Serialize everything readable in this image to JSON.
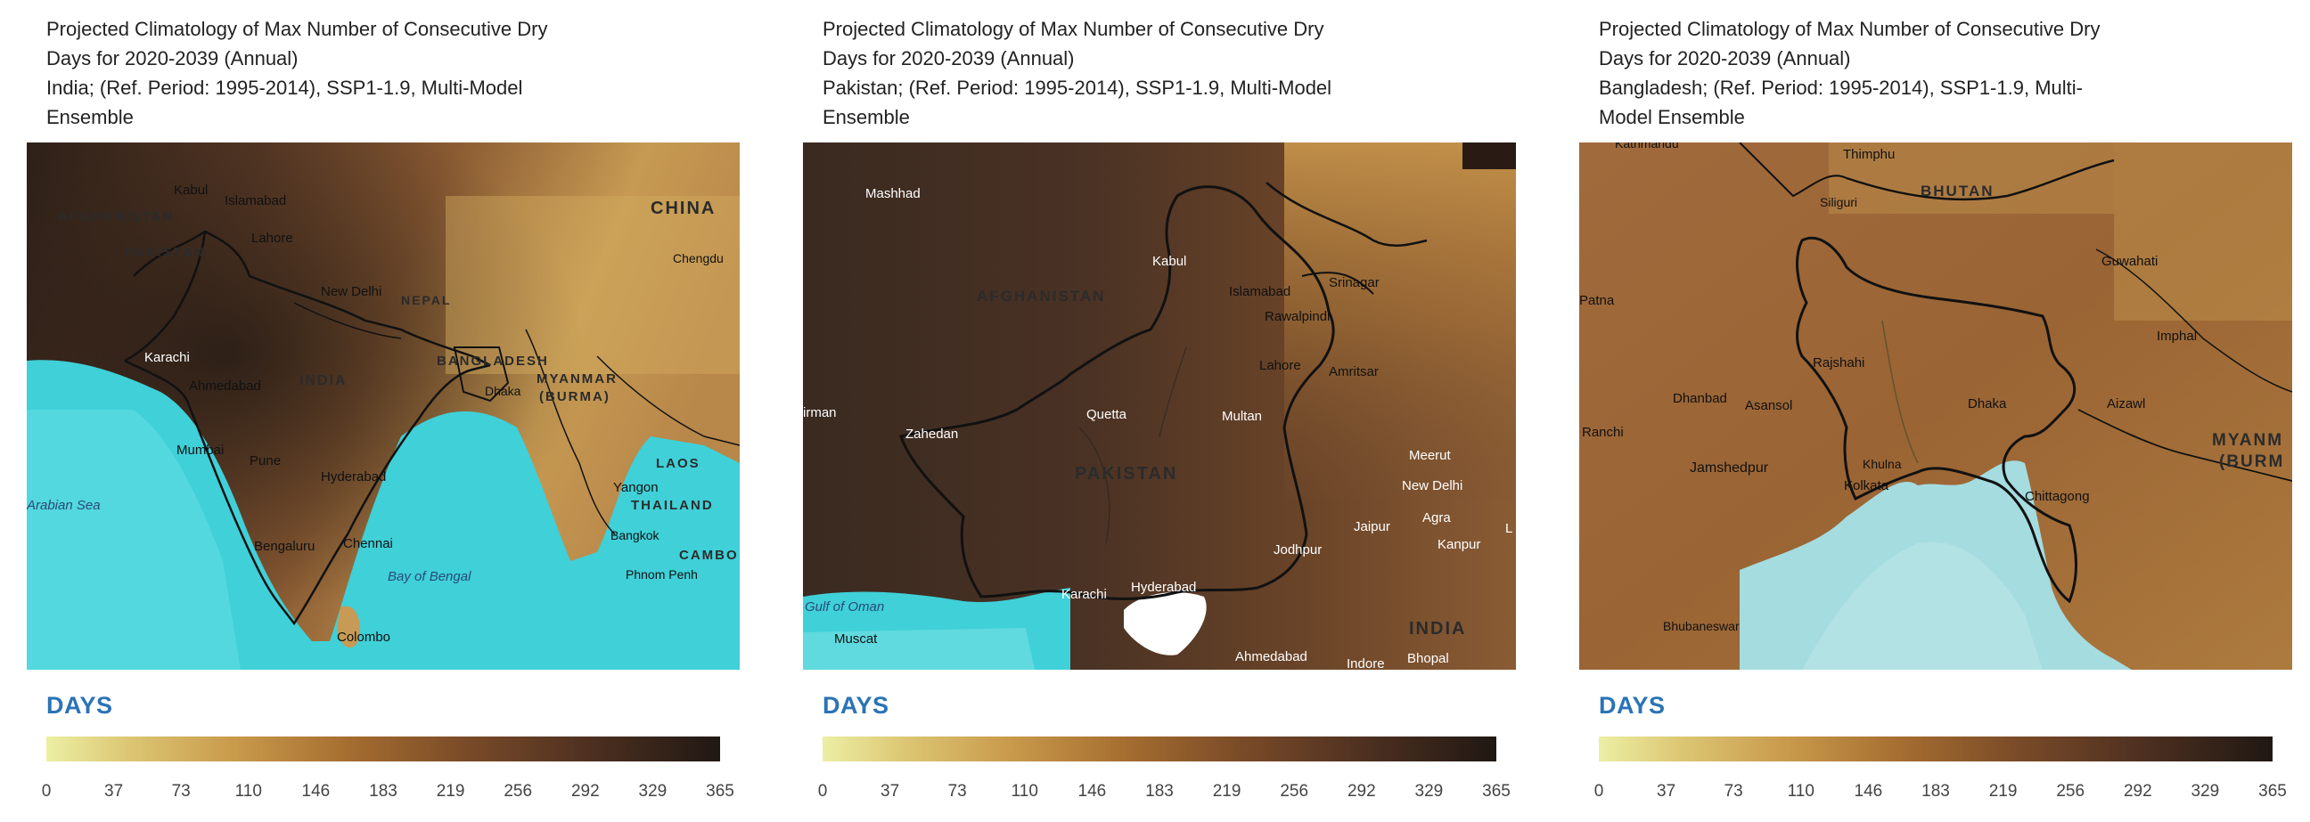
{
  "legend": {
    "title": "DAYS",
    "ticks": [
      "0",
      "37",
      "73",
      "110",
      "146",
      "183",
      "219",
      "256",
      "292",
      "329",
      "365"
    ]
  },
  "colors": {
    "ramp": [
      "#ecefa4",
      "#dcc774",
      "#c89a4a",
      "#a56d30",
      "#7a4b28",
      "#4f3121",
      "#201813"
    ],
    "sea": "#3fd0d8",
    "legend_title": "#2a73b5"
  },
  "panels": [
    {
      "title_lines": [
        "Projected Climatology of Max Number of Consecutive Dry",
        "Days for 2020-2039 (Annual)",
        "India; (Ref. Period: 1995-2014), SSP1-1.9, Multi-Model",
        "Ensemble"
      ],
      "map_labels": {
        "kabul": "Kabul",
        "islamabad": "Islamabad",
        "afghanistan": "AFGHANISTAN",
        "lahore": "Lahore",
        "pakistan": "PAKISTAN",
        "new_delhi": "New Delhi",
        "nepal": "NEPAL",
        "china": "CHINA",
        "chengdu": "Chengdu",
        "karachi": "Karachi",
        "ahmedabad": "Ahmedabad",
        "india": "INDIA",
        "bangladesh": "BANGLADESH",
        "dhaka": "Dhaka",
        "myanmar": "MYANMAR",
        "burma": "(BURMA)",
        "mumbai": "Mumbai",
        "pune": "Pune",
        "hyderabad": "Hyderabad",
        "laos": "LAOS",
        "arabian_sea": "Arabian Sea",
        "yangon": "Yangon",
        "thailand": "THAILAND",
        "bengaluru": "Bengaluru",
        "chennai": "Chennai",
        "bangkok": "Bangkok",
        "bay_of_bengal": "Bay of Bengal",
        "phnom_penh": "Phnom Penh",
        "cambodia": "CAMBO",
        "colombo": "Colombo"
      }
    },
    {
      "title_lines": [
        "Projected Climatology of Max Number of Consecutive Dry",
        "Days for 2020-2039 (Annual)",
        "Pakistan; (Ref. Period: 1995-2014), SSP1-1.9, Multi-Model",
        "Ensemble"
      ],
      "map_labels": {
        "mashhad": "Mashhad",
        "kabul": "Kabul",
        "srinagar": "Srinagar",
        "afghanistan": "AFGHANISTAN",
        "islamabad": "Islamabad",
        "rawalpindi": "Rawalpindi",
        "lahore": "Lahore",
        "amritsar": "Amritsar",
        "kerman": "irman",
        "quetta": "Quetta",
        "multan": "Multan",
        "zahedan": "Zahedan",
        "meerut": "Meerut",
        "pakistan": "PAKISTAN",
        "new_delhi": "New Delhi",
        "agra": "Agra",
        "jaipur": "Jaipur",
        "jodhpur": "Jodhpur",
        "kanpur": "Kanpur",
        "edge_l": "L",
        "gulf_of_oman": "Gulf of Oman",
        "karachi": "Karachi",
        "hyderabad": "Hyderabad",
        "india": "INDIA",
        "muscat": "Muscat",
        "ahmedabad": "Ahmedabad",
        "indore": "Indore",
        "bhopal": "Bhopal"
      }
    },
    {
      "title_lines": [
        "Projected Climatology of Max Number of Consecutive Dry",
        "Days for 2020-2039 (Annual)",
        "Bangladesh; (Ref. Period: 1995-2014), SSP1-1.9, Multi-",
        "Model Ensemble"
      ],
      "map_labels": {
        "kathmandu": "Kathmandu",
        "thimphu": "Thimphu",
        "siliguri": "Siliguri",
        "bhutan": "BHUTAN",
        "guwahati": "Guwahati",
        "patna": "Patna",
        "imphal": "Imphal",
        "rajshahi": "Rajshahi",
        "dhanbad": "Dhanbad",
        "asansol": "Asansol",
        "dhaka": "Dhaka",
        "aizawl": "Aizawl",
        "ranchi": "Ranchi",
        "myanmar": "MYANM",
        "burma": "(BURM",
        "jamshedpur": "Jamshedpur",
        "khulna": "Khulna",
        "kolkata": "Kolkata",
        "chittagong": "Chittagong",
        "bhubaneswar": "Bhubaneswar"
      }
    }
  ]
}
